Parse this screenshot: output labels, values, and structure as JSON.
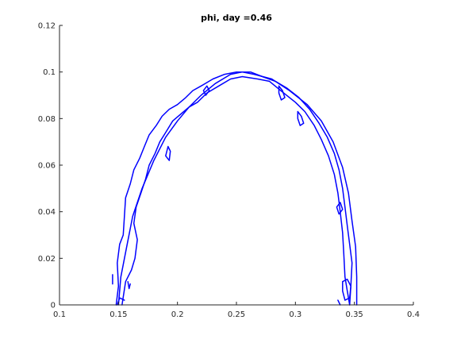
{
  "chart_data": {
    "type": "line",
    "title": "phi, day =0.46",
    "xlabel": "",
    "ylabel": "",
    "xlim": [
      0.1,
      0.4
    ],
    "ylim": [
      0,
      0.12
    ],
    "xticks": [
      0.1,
      0.15,
      0.2,
      0.25,
      0.3,
      0.35,
      0.4
    ],
    "xtick_labels": [
      "0.1",
      "0.15",
      "0.2",
      "0.25",
      "0.3",
      "0.35",
      "0.4"
    ],
    "yticks": [
      0,
      0.02,
      0.04,
      0.06,
      0.08,
      0.1,
      0.12
    ],
    "ytick_labels": [
      "0",
      "0.02",
      "0.04",
      "0.06",
      "0.08",
      "0.1",
      "0.12"
    ],
    "grid": false,
    "line_color": "#0000ff",
    "series": [
      {
        "values": [
          [
            0.15,
            0.0
          ],
          [
            0.152,
            0.012
          ],
          [
            0.157,
            0.025
          ],
          [
            0.162,
            0.038
          ],
          [
            0.17,
            0.05
          ],
          [
            0.18,
            0.062
          ],
          [
            0.19,
            0.072
          ],
          [
            0.2,
            0.079
          ],
          [
            0.21,
            0.085
          ],
          [
            0.22,
            0.09
          ],
          [
            0.232,
            0.095
          ],
          [
            0.245,
            0.099
          ],
          [
            0.255,
            0.1
          ],
          [
            0.265,
            0.099
          ],
          [
            0.28,
            0.097
          ],
          [
            0.295,
            0.092
          ],
          [
            0.31,
            0.086
          ],
          [
            0.322,
            0.079
          ],
          [
            0.332,
            0.07
          ],
          [
            0.34,
            0.059
          ],
          [
            0.345,
            0.048
          ],
          [
            0.348,
            0.036
          ],
          [
            0.351,
            0.025
          ],
          [
            0.352,
            0.012
          ],
          [
            0.352,
            0.0
          ]
        ]
      },
      {
        "values": [
          [
            0.148,
            0.0
          ],
          [
            0.15,
            0.008
          ],
          [
            0.149,
            0.018
          ],
          [
            0.151,
            0.026
          ],
          [
            0.154,
            0.03
          ],
          [
            0.155,
            0.038
          ],
          [
            0.156,
            0.046
          ],
          [
            0.16,
            0.052
          ],
          [
            0.163,
            0.058
          ],
          [
            0.168,
            0.063
          ],
          [
            0.172,
            0.068
          ],
          [
            0.176,
            0.073
          ],
          [
            0.182,
            0.077
          ],
          [
            0.187,
            0.081
          ],
          [
            0.193,
            0.084
          ],
          [
            0.2,
            0.086
          ],
          [
            0.207,
            0.089
          ],
          [
            0.213,
            0.092
          ],
          [
            0.22,
            0.094
          ],
          [
            0.23,
            0.097
          ],
          [
            0.24,
            0.099
          ],
          [
            0.25,
            0.1
          ],
          [
            0.262,
            0.1
          ],
          [
            0.272,
            0.098
          ],
          [
            0.283,
            0.096
          ],
          [
            0.293,
            0.093
          ],
          [
            0.303,
            0.089
          ],
          [
            0.312,
            0.084
          ],
          [
            0.32,
            0.078
          ],
          [
            0.327,
            0.072
          ],
          [
            0.333,
            0.065
          ],
          [
            0.337,
            0.058
          ],
          [
            0.34,
            0.05
          ],
          [
            0.342,
            0.042
          ],
          [
            0.344,
            0.034
          ],
          [
            0.346,
            0.026
          ],
          [
            0.348,
            0.018
          ],
          [
            0.347,
            0.008
          ],
          [
            0.346,
            0.0
          ]
        ]
      },
      {
        "values": [
          [
            0.153,
            0.0
          ],
          [
            0.156,
            0.01
          ],
          [
            0.161,
            0.015
          ],
          [
            0.164,
            0.02
          ],
          [
            0.166,
            0.028
          ],
          [
            0.163,
            0.035
          ],
          [
            0.165,
            0.042
          ],
          [
            0.169,
            0.048
          ],
          [
            0.173,
            0.054
          ],
          [
            0.176,
            0.06
          ],
          [
            0.181,
            0.065
          ],
          [
            0.185,
            0.07
          ],
          [
            0.19,
            0.074
          ],
          [
            0.196,
            0.079
          ],
          [
            0.203,
            0.082
          ],
          [
            0.21,
            0.085
          ],
          [
            0.217,
            0.087
          ],
          [
            0.225,
            0.091
          ],
          [
            0.235,
            0.094
          ],
          [
            0.245,
            0.097
          ],
          [
            0.255,
            0.098
          ],
          [
            0.268,
            0.097
          ],
          [
            0.278,
            0.096
          ],
          [
            0.29,
            0.091
          ],
          [
            0.3,
            0.087
          ],
          [
            0.308,
            0.083
          ],
          [
            0.316,
            0.077
          ],
          [
            0.322,
            0.071
          ],
          [
            0.328,
            0.064
          ],
          [
            0.333,
            0.056
          ],
          [
            0.336,
            0.048
          ],
          [
            0.338,
            0.04
          ],
          [
            0.34,
            0.031
          ],
          [
            0.341,
            0.022
          ],
          [
            0.342,
            0.012
          ],
          [
            0.344,
            0.006
          ],
          [
            0.346,
            0.0
          ]
        ]
      },
      {
        "values": [
          [
            0.145,
            0.013
          ],
          [
            0.145,
            0.009
          ]
        ]
      },
      {
        "values": [
          [
            0.158,
            0.01
          ],
          [
            0.159,
            0.007
          ],
          [
            0.16,
            0.009
          ]
        ]
      },
      {
        "values": [
          [
            0.19,
            0.064
          ],
          [
            0.192,
            0.068
          ],
          [
            0.194,
            0.066
          ],
          [
            0.193,
            0.062
          ],
          [
            0.19,
            0.064
          ]
        ]
      },
      {
        "values": [
          [
            0.222,
            0.092
          ],
          [
            0.225,
            0.094
          ],
          [
            0.227,
            0.092
          ],
          [
            0.224,
            0.09
          ],
          [
            0.222,
            0.092
          ]
        ]
      },
      {
        "values": [
          [
            0.286,
            0.094
          ],
          [
            0.289,
            0.092
          ],
          [
            0.291,
            0.089
          ],
          [
            0.288,
            0.088
          ],
          [
            0.286,
            0.091
          ],
          [
            0.286,
            0.094
          ]
        ]
      },
      {
        "values": [
          [
            0.302,
            0.083
          ],
          [
            0.305,
            0.081
          ],
          [
            0.307,
            0.078
          ],
          [
            0.304,
            0.077
          ],
          [
            0.302,
            0.08
          ],
          [
            0.302,
            0.083
          ]
        ]
      },
      {
        "values": [
          [
            0.335,
            0.042
          ],
          [
            0.338,
            0.044
          ],
          [
            0.34,
            0.041
          ],
          [
            0.337,
            0.039
          ],
          [
            0.335,
            0.042
          ]
        ]
      },
      {
        "values": [
          [
            0.34,
            0.01
          ],
          [
            0.344,
            0.011
          ],
          [
            0.347,
            0.008
          ],
          [
            0.346,
            0.003
          ],
          [
            0.342,
            0.002
          ],
          [
            0.34,
            0.006
          ],
          [
            0.34,
            0.01
          ]
        ]
      },
      {
        "values": [
          [
            0.336,
            0.002
          ],
          [
            0.338,
            0.0
          ]
        ]
      },
      {
        "values": [
          [
            0.149,
            0.0
          ],
          [
            0.151,
            0.003
          ],
          [
            0.155,
            0.002
          ]
        ]
      }
    ]
  }
}
